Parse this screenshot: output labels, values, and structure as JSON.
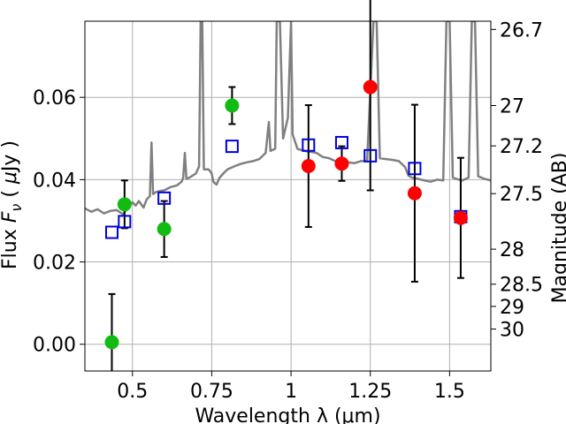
{
  "chart_data": {
    "type": "scatter",
    "title": "",
    "xlabel": "Wavelength  λ (μm)",
    "ylabel": "Flux  F_ν  ( μJy )",
    "ylabel_right": "Magnitude (AB)",
    "xlim": [
      0.35,
      1.63
    ],
    "ylim": [
      -0.0065,
      0.0785
    ],
    "grid": true,
    "x_ticks": [
      0.5,
      0.75,
      1.0,
      1.25,
      1.5
    ],
    "x_tick_labels": [
      "0.5",
      "0.75",
      "1",
      "1.25",
      "1.5"
    ],
    "y_ticks": [
      0.0,
      0.02,
      0.04,
      0.06
    ],
    "y_tick_labels": [
      "0.00",
      "0.02",
      "0.04",
      "0.06"
    ],
    "right_ticks": [
      {
        "label": "26.7",
        "flux": 0.0765
      },
      {
        "label": "27",
        "flux": 0.058
      },
      {
        "label": "27.2",
        "flux": 0.0482
      },
      {
        "label": "27.5",
        "flux": 0.0366
      },
      {
        "label": "28",
        "flux": 0.0231
      },
      {
        "label": "28.5",
        "flux": 0.0146
      },
      {
        "label": "29",
        "flux": 0.0092
      },
      {
        "label": "30",
        "flux": 0.0037
      }
    ],
    "colors": {
      "green_points": "#11bb11",
      "red_points": "#ff0000",
      "model_squares": "#0000dd",
      "sed_line": "#808080",
      "error_bars": "#000000",
      "grid": "#b0b0b0"
    },
    "series": [
      {
        "marker": "circle",
        "color": "#11bb11",
        "points": [
          {
            "x": 0.435,
            "y": 0.0005,
            "err": 0.0117
          },
          {
            "x": 0.475,
            "y": 0.034,
            "err": 0.0058
          },
          {
            "x": 0.6,
            "y": 0.028,
            "err": 0.0068
          },
          {
            "x": 0.814,
            "y": 0.058,
            "err": 0.0045
          }
        ]
      },
      {
        "marker": "circle",
        "color": "#ff0000",
        "points": [
          {
            "x": 1.055,
            "y": 0.0433,
            "err": 0.0148
          },
          {
            "x": 1.16,
            "y": 0.0439,
            "err": 0.0042
          },
          {
            "x": 1.25,
            "y": 0.0625,
            "err": 0.0251
          },
          {
            "x": 1.39,
            "y": 0.0367,
            "err": 0.0215
          },
          {
            "x": 1.535,
            "y": 0.0307,
            "err": 0.0146
          }
        ]
      },
      {
        "marker": "square",
        "color": "#0000dd",
        "points": [
          {
            "x": 0.435,
            "y": 0.0272
          },
          {
            "x": 0.475,
            "y": 0.0298
          },
          {
            "x": 0.6,
            "y": 0.0355
          },
          {
            "x": 0.814,
            "y": 0.0481
          },
          {
            "x": 1.055,
            "y": 0.0484
          },
          {
            "x": 1.16,
            "y": 0.049
          },
          {
            "x": 1.25,
            "y": 0.0458
          },
          {
            "x": 1.39,
            "y": 0.0427
          },
          {
            "x": 1.535,
            "y": 0.031
          }
        ]
      },
      {
        "marker": "line",
        "color": "#808080",
        "points": [
          [
            0.35,
            0.033
          ],
          [
            0.37,
            0.0322
          ],
          [
            0.39,
            0.0328
          ],
          [
            0.41,
            0.0318
          ],
          [
            0.43,
            0.0324
          ],
          [
            0.45,
            0.0326
          ],
          [
            0.47,
            0.0316
          ],
          [
            0.49,
            0.0335
          ],
          [
            0.5,
            0.0345
          ],
          [
            0.51,
            0.0337
          ],
          [
            0.52,
            0.0348
          ],
          [
            0.535,
            0.0332
          ],
          [
            0.545,
            0.0352
          ],
          [
            0.555,
            0.036
          ],
          [
            0.56,
            0.049
          ],
          [
            0.565,
            0.0365
          ],
          [
            0.575,
            0.037
          ],
          [
            0.585,
            0.0372
          ],
          [
            0.6,
            0.0374
          ],
          [
            0.62,
            0.0382
          ],
          [
            0.64,
            0.0386
          ],
          [
            0.655,
            0.0395
          ],
          [
            0.66,
            0.0405
          ],
          [
            0.665,
            0.0465
          ],
          [
            0.67,
            0.0402
          ],
          [
            0.68,
            0.0405
          ],
          [
            0.7,
            0.0415
          ],
          [
            0.71,
            0.0432
          ],
          [
            0.715,
            0.0785
          ],
          [
            0.72,
            0.0785
          ],
          [
            0.725,
            0.0425
          ],
          [
            0.74,
            0.0425
          ],
          [
            0.75,
            0.0415
          ],
          [
            0.755,
            0.0395
          ],
          [
            0.765,
            0.0388
          ],
          [
            0.775,
            0.0405
          ],
          [
            0.79,
            0.0418
          ],
          [
            0.8,
            0.0425
          ],
          [
            0.82,
            0.0432
          ],
          [
            0.84,
            0.0438
          ],
          [
            0.86,
            0.0442
          ],
          [
            0.88,
            0.0445
          ],
          [
            0.9,
            0.045
          ],
          [
            0.92,
            0.0465
          ],
          [
            0.93,
            0.054
          ],
          [
            0.935,
            0.047
          ],
          [
            0.95,
            0.0475
          ],
          [
            0.955,
            0.0785
          ],
          [
            0.965,
            0.0785
          ],
          [
            0.975,
            0.05
          ],
          [
            0.99,
            0.055
          ],
          [
            1.0,
            0.0785
          ],
          [
            1.005,
            0.051
          ],
          [
            1.02,
            0.0475
          ],
          [
            1.04,
            0.047
          ],
          [
            1.06,
            0.0468
          ],
          [
            1.08,
            0.0465
          ],
          [
            1.1,
            0.0455
          ],
          [
            1.12,
            0.0452
          ],
          [
            1.14,
            0.0445
          ],
          [
            1.16,
            0.0448
          ],
          [
            1.18,
            0.0442
          ],
          [
            1.2,
            0.044
          ],
          [
            1.22,
            0.0445
          ],
          [
            1.24,
            0.0445
          ],
          [
            1.26,
            0.0785
          ],
          [
            1.27,
            0.0785
          ],
          [
            1.28,
            0.0452
          ],
          [
            1.3,
            0.045
          ],
          [
            1.32,
            0.0448
          ],
          [
            1.34,
            0.0445
          ],
          [
            1.36,
            0.043
          ],
          [
            1.37,
            0.041
          ],
          [
            1.38,
            0.0405
          ],
          [
            1.4,
            0.0402
          ],
          [
            1.42,
            0.0398
          ],
          [
            1.44,
            0.0395
          ],
          [
            1.46,
            0.04
          ],
          [
            1.48,
            0.0398
          ],
          [
            1.49,
            0.0785
          ],
          [
            1.5,
            0.0785
          ],
          [
            1.51,
            0.0405
          ],
          [
            1.52,
            0.0402
          ],
          [
            1.54,
            0.0398
          ],
          [
            1.56,
            0.0405
          ],
          [
            1.57,
            0.0785
          ],
          [
            1.58,
            0.0785
          ],
          [
            1.59,
            0.0408
          ],
          [
            1.61,
            0.0402
          ],
          [
            1.63,
            0.0398
          ]
        ]
      }
    ]
  }
}
